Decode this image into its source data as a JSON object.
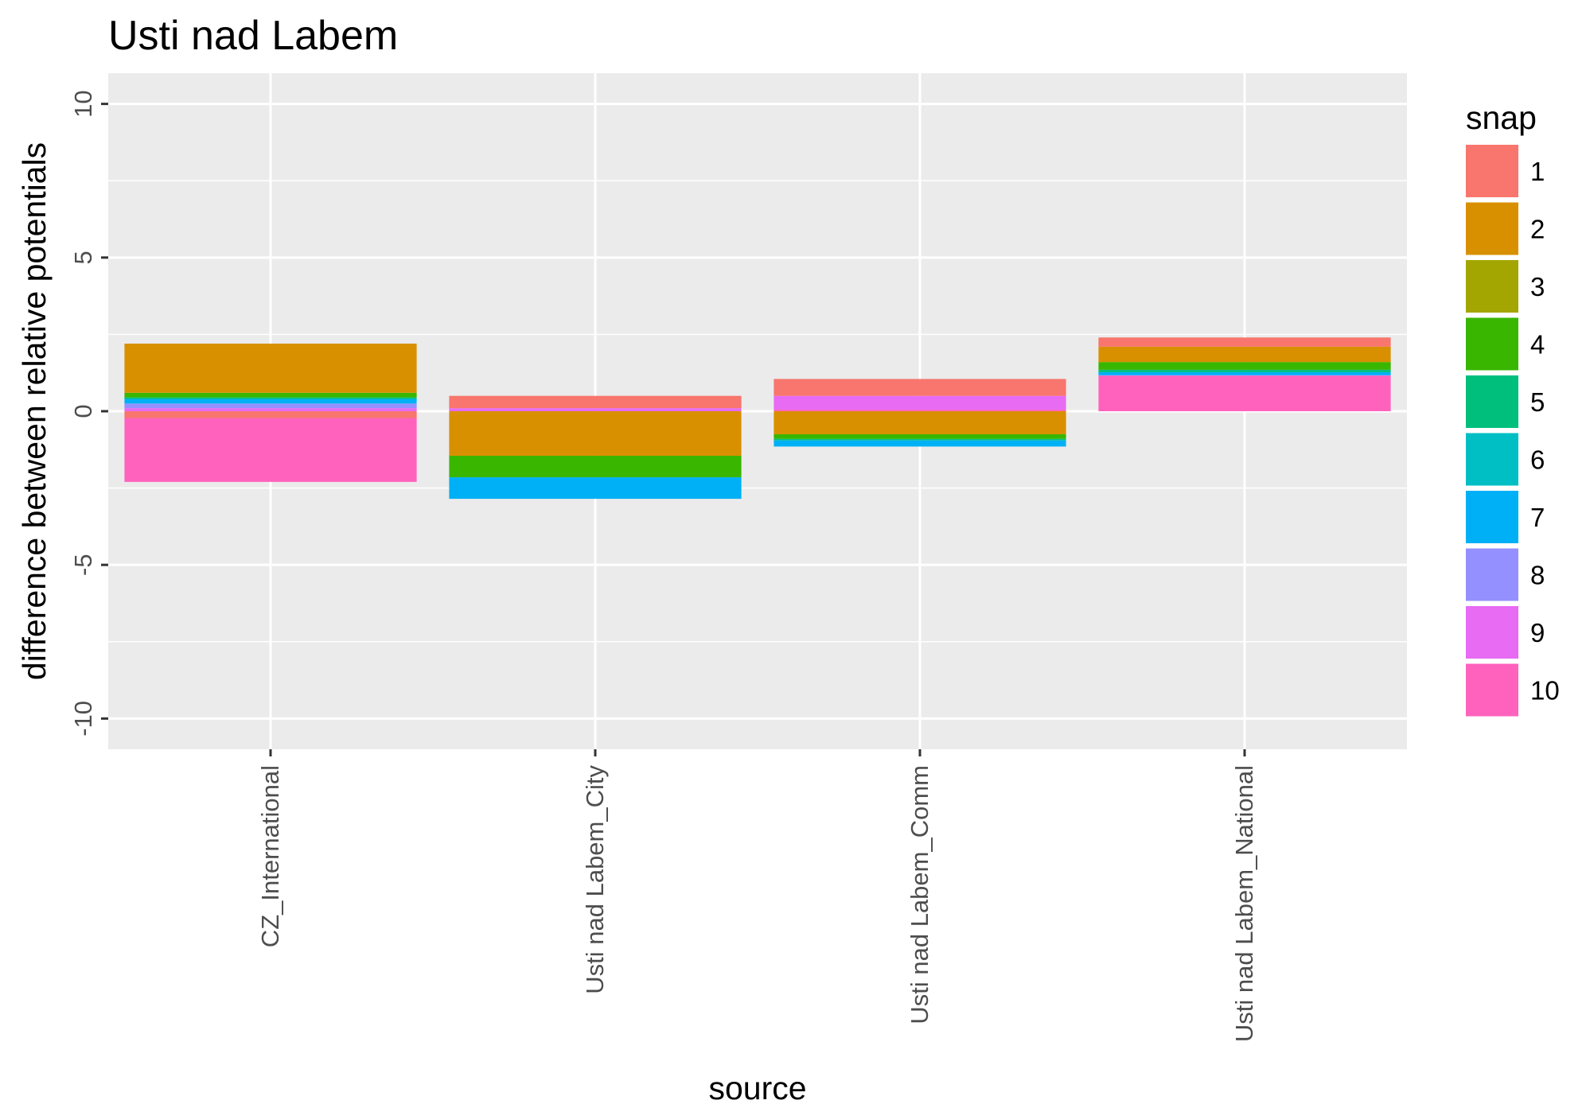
{
  "chart_data": {
    "type": "bar",
    "stacked": true,
    "title": "Usti nad Labem",
    "xlabel": "source",
    "ylabel": "difference between relative potentials",
    "categories": [
      "CZ_International",
      "Usti nad Labem_City",
      "Usti nad Labem_Comm",
      "Usti nad Labem_National"
    ],
    "ylim": [
      -11,
      11
    ],
    "yticks": [
      -10,
      -5,
      0,
      5,
      10
    ],
    "y_tick_labels": [
      "-10",
      "-5",
      "0",
      "5",
      "10"
    ],
    "grid": true,
    "legend": {
      "title": "snap",
      "position": "right"
    },
    "series": [
      {
        "name": "1",
        "color": "#F8766D",
        "values": [
          -0.22,
          0.4,
          0.55,
          0.3
        ]
      },
      {
        "name": "2",
        "color": "#D89000",
        "values": [
          1.6,
          -1.45,
          -0.75,
          0.5
        ]
      },
      {
        "name": "3",
        "color": "#A3A500",
        "values": [
          0.0,
          0.0,
          0.0,
          0.0
        ]
      },
      {
        "name": "4",
        "color": "#39B600",
        "values": [
          0.15,
          -0.7,
          -0.15,
          0.25
        ]
      },
      {
        "name": "5",
        "color": "#00BF7D",
        "values": [
          0.05,
          0.0,
          -0.05,
          0.08
        ]
      },
      {
        "name": "6",
        "color": "#00BFC4",
        "values": [
          0.0,
          0.0,
          0.0,
          0.0
        ]
      },
      {
        "name": "7",
        "color": "#00B0F6",
        "values": [
          0.15,
          -0.7,
          -0.2,
          0.1
        ]
      },
      {
        "name": "8",
        "color": "#9590FF",
        "values": [
          0.15,
          0.0,
          0.0,
          0.0
        ]
      },
      {
        "name": "9",
        "color": "#E76BF3",
        "values": [
          0.1,
          0.1,
          0.45,
          0.02
        ]
      },
      {
        "name": "10",
        "color": "#FF62BC",
        "values": [
          -2.08,
          0.0,
          0.05,
          1.15
        ]
      }
    ]
  }
}
